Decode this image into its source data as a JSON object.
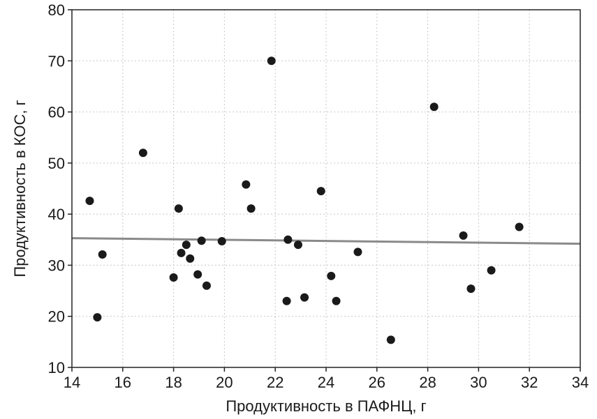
{
  "chart_data": {
    "type": "scatter",
    "xlabel": "Продуктивность в ПАФНЦ, г",
    "ylabel": "Продуктивность в КОС, г",
    "xlim": [
      14,
      34
    ],
    "ylim": [
      10,
      80
    ],
    "xticks": [
      14,
      16,
      18,
      20,
      22,
      24,
      26,
      28,
      30,
      32,
      34
    ],
    "yticks": [
      10,
      20,
      30,
      40,
      50,
      60,
      70,
      80
    ],
    "xtick_labels": [
      "14",
      "16",
      "18",
      "20",
      "22",
      "24",
      "26",
      "28",
      "30",
      "32",
      "34"
    ],
    "ytick_labels": [
      "10",
      "20",
      "30",
      "40",
      "50",
      "60",
      "70",
      "80"
    ],
    "grid": true,
    "points": [
      {
        "x": 14.7,
        "y": 42.6
      },
      {
        "x": 15.0,
        "y": 19.8
      },
      {
        "x": 15.2,
        "y": 32.1
      },
      {
        "x": 16.8,
        "y": 52.0
      },
      {
        "x": 18.0,
        "y": 27.6
      },
      {
        "x": 18.2,
        "y": 41.1
      },
      {
        "x": 18.3,
        "y": 32.4
      },
      {
        "x": 18.5,
        "y": 34.0
      },
      {
        "x": 18.65,
        "y": 31.3
      },
      {
        "x": 18.95,
        "y": 28.2
      },
      {
        "x": 19.1,
        "y": 34.8
      },
      {
        "x": 19.3,
        "y": 26.0
      },
      {
        "x": 19.9,
        "y": 34.7
      },
      {
        "x": 20.85,
        "y": 45.8
      },
      {
        "x": 21.05,
        "y": 41.1
      },
      {
        "x": 21.85,
        "y": 70.0
      },
      {
        "x": 22.45,
        "y": 23.0
      },
      {
        "x": 22.5,
        "y": 35.0
      },
      {
        "x": 22.9,
        "y": 34.0
      },
      {
        "x": 23.15,
        "y": 23.7
      },
      {
        "x": 23.8,
        "y": 44.5
      },
      {
        "x": 24.2,
        "y": 27.9
      },
      {
        "x": 24.4,
        "y": 23.0
      },
      {
        "x": 25.25,
        "y": 32.6
      },
      {
        "x": 26.55,
        "y": 15.4
      },
      {
        "x": 28.25,
        "y": 61.0
      },
      {
        "x": 29.4,
        "y": 35.8
      },
      {
        "x": 29.7,
        "y": 25.4
      },
      {
        "x": 30.5,
        "y": 29.0
      },
      {
        "x": 31.6,
        "y": 37.5
      }
    ],
    "trendline": {
      "x": [
        14,
        34
      ],
      "y": [
        35.3,
        34.2
      ]
    },
    "colors": {
      "points": "#1a1a1a",
      "trendline": "#8a8a8a",
      "grid": "#c8c8c8"
    }
  }
}
